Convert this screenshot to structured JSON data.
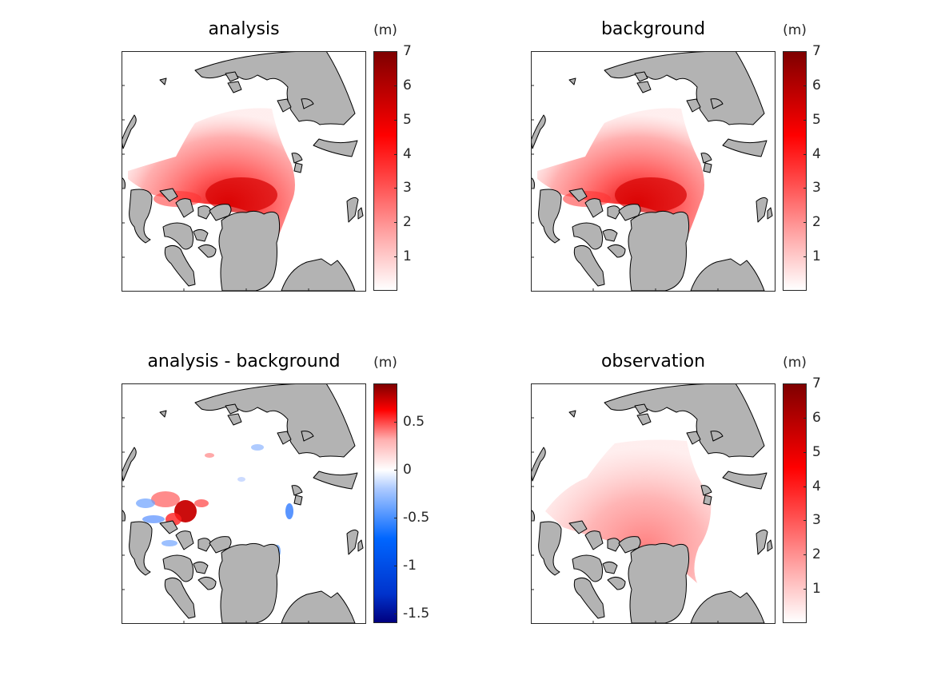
{
  "panels": [
    {
      "id": "analysis",
      "title": "analysis",
      "unit": "(m)",
      "colorbar": {
        "scheme": "red",
        "min": 0,
        "max": 7,
        "ticks": [
          "1",
          "2",
          "3",
          "4",
          "5",
          "6",
          "7"
        ],
        "tick_values": [
          1,
          2,
          3,
          4,
          5,
          6,
          7
        ]
      }
    },
    {
      "id": "background",
      "title": "background",
      "unit": "(m)",
      "colorbar": {
        "scheme": "red",
        "min": 0,
        "max": 7,
        "ticks": [
          "1",
          "2",
          "3",
          "4",
          "5",
          "6",
          "7"
        ],
        "tick_values": [
          1,
          2,
          3,
          4,
          5,
          6,
          7
        ]
      }
    },
    {
      "id": "difference",
      "title": "analysis - background",
      "unit": "(m)",
      "colorbar": {
        "scheme": "diverging",
        "min": -1.6,
        "max": 0.9,
        "ticks": [
          "-1.5",
          "-1",
          "-0.5",
          "0",
          "0.5"
        ],
        "tick_values": [
          -1.5,
          -1,
          -0.5,
          0,
          0.5
        ]
      }
    },
    {
      "id": "observation",
      "title": "observation",
      "unit": "(m)",
      "colorbar": {
        "scheme": "red",
        "min": 0,
        "max": 7,
        "ticks": [
          "1",
          "2",
          "3",
          "4",
          "5",
          "6",
          "7"
        ],
        "tick_values": [
          1,
          2,
          3,
          4,
          5,
          6,
          7
        ]
      }
    }
  ],
  "colors": {
    "land": "#b3b3b3",
    "coast": "#000000",
    "red_max": "#7f0000",
    "red_mid": "#ff0000",
    "blue_min": "#00007f",
    "blue_mid": "#0066ff"
  },
  "chart_data": [
    {
      "type": "heatmap",
      "title": "analysis",
      "units": "m",
      "colorbar_range": [
        0,
        7
      ]
    },
    {
      "type": "heatmap",
      "title": "background",
      "units": "m",
      "colorbar_range": [
        0,
        7
      ]
    },
    {
      "type": "heatmap",
      "title": "analysis - background",
      "units": "m",
      "colorbar_range": [
        -1.6,
        0.9
      ]
    },
    {
      "type": "heatmap",
      "title": "observation",
      "units": "m",
      "colorbar_range": [
        0,
        7
      ]
    }
  ]
}
